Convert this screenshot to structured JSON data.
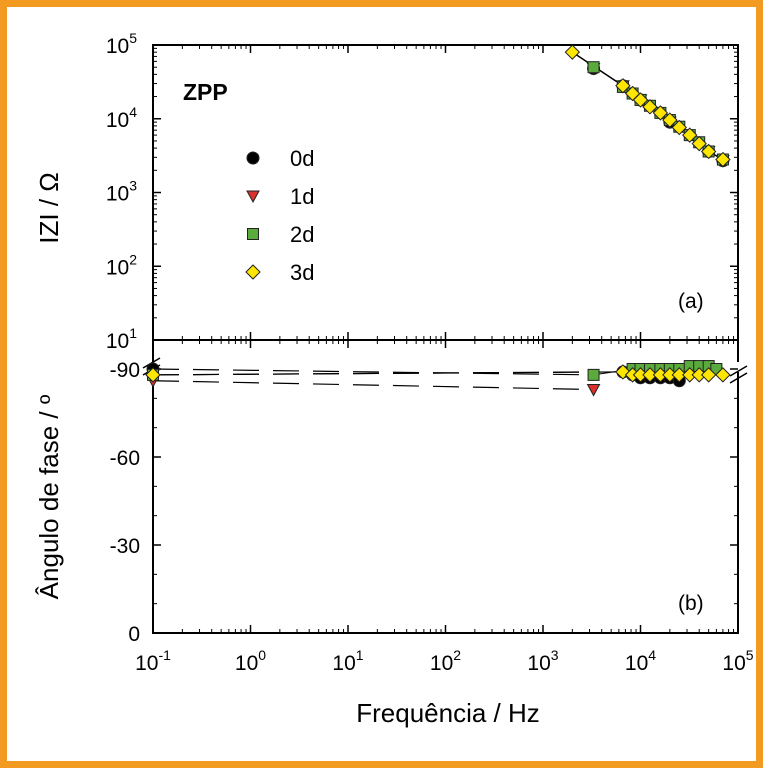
{
  "chart_data": [
    {
      "type": "line",
      "panel": "a",
      "title": "ZPP",
      "ylabel": "IZI / Ω",
      "xlabel": "Frequência / Hz",
      "xscale": "log",
      "yscale": "log",
      "xlim": [
        0.1,
        100000
      ],
      "ylim": [
        10,
        100000
      ],
      "x_ticks": [
        {
          "base": "10",
          "exp": "-1"
        },
        {
          "base": "10",
          "exp": "0"
        },
        {
          "base": "10",
          "exp": "1"
        },
        {
          "base": "10",
          "exp": "2"
        },
        {
          "base": "10",
          "exp": "3"
        },
        {
          "base": "10",
          "exp": "4"
        },
        {
          "base": "10",
          "exp": "5"
        }
      ],
      "y_ticks": [
        {
          "base": "10",
          "exp": "1"
        },
        {
          "base": "10",
          "exp": "2"
        },
        {
          "base": "10",
          "exp": "3"
        },
        {
          "base": "10",
          "exp": "4"
        },
        {
          "base": "10",
          "exp": "5"
        }
      ],
      "panel_label": "(a)",
      "legend_position": "upper-left",
      "series": [
        {
          "name": "0d",
          "marker": "circle",
          "color": "#000000",
          "x": [
            3300,
            6600,
            10000,
            20000,
            50000,
            70000
          ],
          "y": [
            48000,
            28000,
            18000,
            9000,
            3600,
            2700
          ]
        },
        {
          "name": "1d",
          "marker": "triangle-down",
          "color": "#d9312b",
          "x": [
            3300,
            6600,
            10000,
            20000,
            50000,
            70000
          ],
          "y": [
            48000,
            28000,
            18000,
            9000,
            3600,
            2700
          ]
        },
        {
          "name": "2d",
          "marker": "square",
          "color": "#5aaa3c",
          "x": [
            3300,
            6600,
            8300,
            10000,
            12500,
            16000,
            20000,
            25000,
            32000,
            40000,
            50000,
            70000
          ],
          "y": [
            50000,
            27000,
            22000,
            18000,
            15000,
            12000,
            9600,
            7800,
            6000,
            4800,
            3600,
            2800
          ]
        },
        {
          "name": "3d",
          "marker": "diamond",
          "color": "#ffe600",
          "x": [
            2000,
            6600,
            8300,
            10000,
            12500,
            16000,
            20000,
            25000,
            32000,
            40000,
            50000,
            70000
          ],
          "y": [
            80000,
            28000,
            22000,
            18000,
            14500,
            12000,
            9600,
            7600,
            6000,
            4600,
            3600,
            2800
          ]
        }
      ]
    },
    {
      "type": "line",
      "panel": "b",
      "ylabel": "Ângulo de fase / º",
      "xlabel": "Frequência / Hz",
      "xscale": "log",
      "xlim": [
        0.1,
        100000
      ],
      "ylim": [
        0,
        95
      ],
      "y_ticks": [
        "0",
        "-30",
        "-60",
        "-90"
      ],
      "y_tick_values": [
        0,
        30,
        60,
        90
      ],
      "panel_label": "(b)",
      "series": [
        {
          "name": "0d",
          "marker": "circle",
          "color": "#000000",
          "x": [
            0.1,
            6600,
            8300,
            10000,
            12500,
            16000,
            20000,
            25000
          ],
          "y": [
            90,
            89,
            88,
            87,
            87,
            87,
            87,
            86
          ],
          "dashed_to": [
            3300,
            88
          ]
        },
        {
          "name": "1d",
          "marker": "triangle-down",
          "color": "#d9312b",
          "x": [
            0.1,
            3300
          ],
          "y": [
            86,
            83
          ],
          "dashed_to": [
            3300,
            83
          ]
        },
        {
          "name": "2d",
          "marker": "square",
          "color": "#5aaa3c",
          "x": [
            0.1,
            3300,
            8300,
            10000,
            12500,
            16000,
            20000,
            25000,
            32000,
            40000,
            50000,
            60000
          ],
          "y": [
            88,
            88,
            90,
            90,
            90,
            90,
            90,
            90,
            91,
            91,
            91,
            90
          ],
          "dashed_to": [
            3300,
            89
          ]
        },
        {
          "name": "3d",
          "marker": "diamond",
          "color": "#ffe600",
          "x": [
            0.1,
            6600,
            8300,
            10000,
            12500,
            16000,
            20000,
            25000,
            32000,
            40000,
            50000,
            70000
          ],
          "y": [
            88,
            89,
            88,
            88,
            88,
            88,
            88,
            88,
            88,
            88,
            88,
            88
          ],
          "dashed_to": [
            6600,
            89
          ]
        }
      ]
    }
  ],
  "legend": [
    {
      "label": "0d"
    },
    {
      "label": "1d"
    },
    {
      "label": "2d"
    },
    {
      "label": "3d"
    }
  ],
  "texts": {
    "title": "ZPP",
    "ylabel_top": "IZI / Ω",
    "ylabel_bottom": "Ângulo de fase / º",
    "xlabel": "Frequência / Hz",
    "panel_a": "(a)",
    "panel_b": "(b)"
  }
}
